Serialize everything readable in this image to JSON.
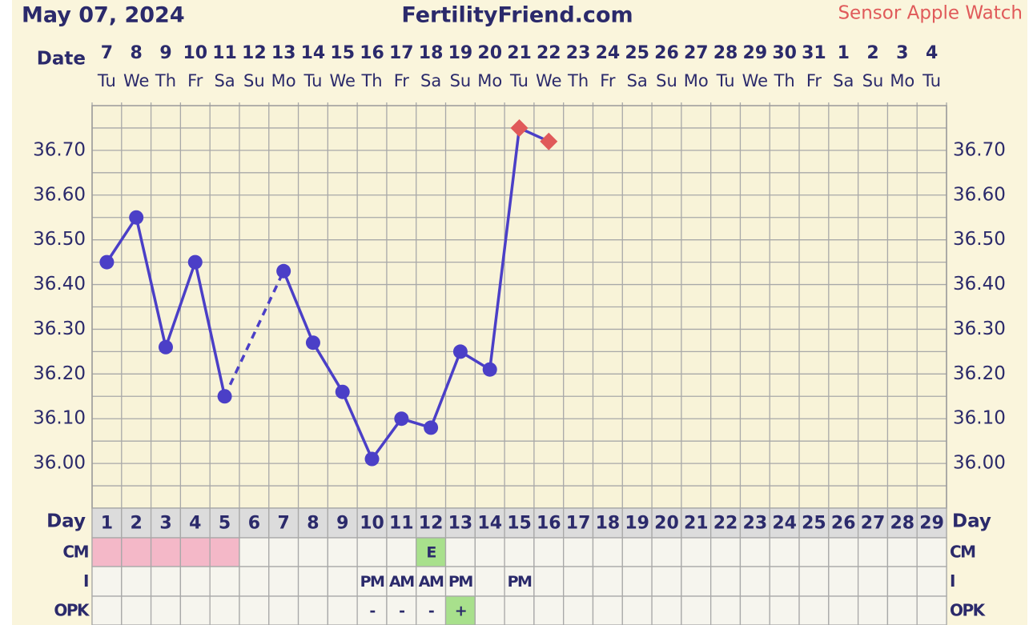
{
  "chart_data": {
    "type": "line",
    "title": "FertilityFriend.com",
    "date_text": "May 07, 2024",
    "source_text": "Sensor Apple Watch",
    "source_color": "#e05a5a",
    "date_label": "Date",
    "dates": [
      "7",
      "8",
      "9",
      "10",
      "11",
      "12",
      "13",
      "14",
      "15",
      "16",
      "17",
      "18",
      "19",
      "20",
      "21",
      "22",
      "23",
      "24",
      "25",
      "26",
      "27",
      "28",
      "29",
      "30",
      "31",
      "1",
      "2",
      "3",
      "4"
    ],
    "weekdays": [
      "Tu",
      "We",
      "Th",
      "Fr",
      "Sa",
      "Su",
      "Mo",
      "Tu",
      "We",
      "Th",
      "Fr",
      "Sa",
      "Su",
      "Mo",
      "Tu",
      "We",
      "Th",
      "Fr",
      "Sa",
      "Su",
      "Mo",
      "Tu",
      "We",
      "Th",
      "Fr",
      "Sa",
      "Su",
      "Mo",
      "Tu"
    ],
    "day_label": "Day",
    "categories": [
      "1",
      "2",
      "3",
      "4",
      "5",
      "6",
      "7",
      "8",
      "9",
      "10",
      "11",
      "12",
      "13",
      "14",
      "15",
      "16",
      "17",
      "18",
      "19",
      "20",
      "21",
      "22",
      "23",
      "24",
      "25",
      "26",
      "27",
      "28",
      "29"
    ],
    "series": [
      {
        "color": "#4b3fc7",
        "values": [
          36.45,
          36.55,
          36.26,
          36.45,
          36.15,
          null,
          36.43,
          36.27,
          36.16,
          36.01,
          36.1,
          36.08,
          36.25,
          36.21,
          36.75,
          36.72,
          null,
          null,
          null,
          null,
          null,
          null,
          null,
          null,
          null,
          null,
          null,
          null,
          null
        ],
        "markers": [
          "circle",
          "circle",
          "circle",
          "circle",
          "circle",
          null,
          "circle",
          "circle",
          "circle",
          "circle",
          "circle",
          "circle",
          "circle",
          "circle",
          "diamond",
          "diamond",
          null,
          null,
          null,
          null,
          null,
          null,
          null,
          null,
          null,
          null,
          null,
          null,
          null
        ]
      }
    ],
    "gap_style": "dashed",
    "ylim": [
      35.9,
      36.8
    ],
    "yticks": [
      {
        "value": 36.0,
        "label": "36.00"
      },
      {
        "value": 36.1,
        "label": "36.10"
      },
      {
        "value": 36.2,
        "label": "36.20"
      },
      {
        "value": 36.3,
        "label": "36.30"
      },
      {
        "value": 36.4,
        "label": "36.40"
      },
      {
        "value": 36.5,
        "label": "36.50"
      },
      {
        "value": 36.6,
        "label": "36.60"
      },
      {
        "value": 36.7,
        "label": "36.70"
      }
    ],
    "minor_yticks": [
      35.95,
      36.05,
      36.15,
      36.25,
      36.35,
      36.45,
      36.55,
      36.65,
      36.75
    ],
    "grid": true,
    "rows": [
      {
        "label": "CM",
        "cells": [
          null,
          null,
          null,
          null,
          null,
          null,
          null,
          null,
          null,
          null,
          null,
          "E",
          null,
          null,
          null,
          null,
          null,
          null,
          null,
          null,
          null,
          null,
          null,
          null,
          null,
          null,
          null,
          null,
          null
        ],
        "colors": [
          "#f4b8c8",
          "#f4b8c8",
          "#f4b8c8",
          "#f4b8c8",
          "#f4b8c8",
          null,
          null,
          null,
          null,
          null,
          null,
          "#a8e08c",
          null,
          null,
          null,
          null,
          null,
          null,
          null,
          null,
          null,
          null,
          null,
          null,
          null,
          null,
          null,
          null,
          null
        ]
      },
      {
        "label": "I",
        "cells": [
          null,
          null,
          null,
          null,
          null,
          null,
          null,
          null,
          null,
          "PM",
          "AM",
          "AM",
          "PM",
          null,
          "PM",
          null,
          null,
          null,
          null,
          null,
          null,
          null,
          null,
          null,
          null,
          null,
          null,
          null,
          null
        ]
      },
      {
        "label": "OPK",
        "cells": [
          null,
          null,
          null,
          null,
          null,
          null,
          null,
          null,
          null,
          "-",
          "-",
          "-",
          "+",
          null,
          null,
          null,
          null,
          null,
          null,
          null,
          null,
          null,
          null,
          null,
          null,
          null,
          null,
          null,
          null
        ],
        "colors": [
          null,
          null,
          null,
          null,
          null,
          null,
          null,
          null,
          null,
          null,
          null,
          null,
          "#a8e08c",
          null,
          null,
          null,
          null,
          null,
          null,
          null,
          null,
          null,
          null,
          null,
          null,
          null,
          null,
          null,
          null
        ]
      }
    ]
  }
}
